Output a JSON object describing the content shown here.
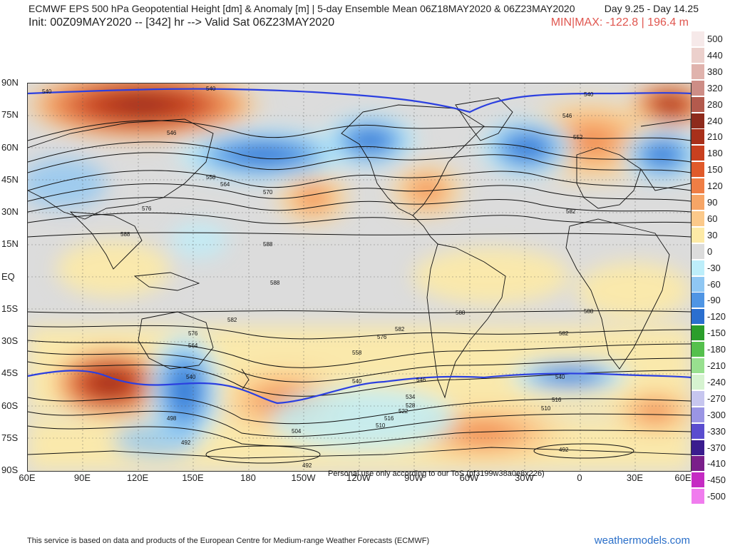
{
  "header": {
    "title": "ECMWF EPS 500 hPa Geopotential Height [dm] & Anomaly [m] | 5-day Ensemble Mean 06Z18MAY2020 & 06Z23MAY2020",
    "days": "Day 9.25 - Day 14.25",
    "init": "Init: 00Z09MAY2020 -- [342] hr --> Valid Sat 06Z23MAY2020",
    "minmax": "MIN|MAX: -122.8 | 196.4 m"
  },
  "axes": {
    "lat_labels": [
      "90N",
      "75N",
      "60N",
      "45N",
      "30N",
      "15N",
      "EQ",
      "15S",
      "30S",
      "45S",
      "60S",
      "75S",
      "90S"
    ],
    "lon_labels": [
      "60E",
      "90E",
      "120E",
      "150E",
      "180",
      "150W",
      "120W",
      "90W",
      "60W",
      "30W",
      "0",
      "30E",
      "60E"
    ]
  },
  "colorbar": {
    "levels": [
      {
        "label": "500",
        "color": "#f6e9e9"
      },
      {
        "label": "440",
        "color": "#ecd0cc"
      },
      {
        "label": "380",
        "color": "#e0b3ad"
      },
      {
        "label": "320",
        "color": "#cd8d86"
      },
      {
        "label": "280",
        "color": "#b35a4d"
      },
      {
        "label": "240",
        "color": "#8e2b1c"
      },
      {
        "label": "210",
        "color": "#a8301a"
      },
      {
        "label": "180",
        "color": "#c8401f"
      },
      {
        "label": "150",
        "color": "#e05a2a"
      },
      {
        "label": "120",
        "color": "#ef7e45"
      },
      {
        "label": "90",
        "color": "#f6a566"
      },
      {
        "label": "60",
        "color": "#fbc98a"
      },
      {
        "label": "30",
        "color": "#fdeaa6"
      },
      {
        "label": "0",
        "color": "#dcdcdc"
      },
      {
        "label": "-30",
        "color": "#bdeefa"
      },
      {
        "label": "-60",
        "color": "#8fc7f3"
      },
      {
        "label": "-90",
        "color": "#4f95e4"
      },
      {
        "label": "-120",
        "color": "#2b6fcf"
      },
      {
        "label": "-150",
        "color": "#2b9e2b"
      },
      {
        "label": "-180",
        "color": "#55c04d"
      },
      {
        "label": "-210",
        "color": "#98e08f"
      },
      {
        "label": "-240",
        "color": "#d6f3d0"
      },
      {
        "label": "-270",
        "color": "#c7c6ef"
      },
      {
        "label": "-300",
        "color": "#9a95e4"
      },
      {
        "label": "-330",
        "color": "#5a4dcf"
      },
      {
        "label": "-370",
        "color": "#3a1c8e"
      },
      {
        "label": "-410",
        "color": "#7a1f8a"
      },
      {
        "label": "-450",
        "color": "#c52bc3"
      },
      {
        "label": "-500",
        "color": "#f07cee"
      }
    ]
  },
  "contour_labels": [
    "540",
    "546",
    "552",
    "558",
    "564",
    "570",
    "576",
    "582",
    "588",
    "534",
    "528",
    "522",
    "516",
    "510",
    "504",
    "498",
    "492"
  ],
  "watermark": "Personal use only according to our ToS (pf3199w38a0e8x226)",
  "footer": "This service is based on data and products of the European Centre for Medium-range Weather Forecasts (ECMWF)",
  "brand": "weathermodels.com",
  "colors": {
    "map_background": "#dcdcdc",
    "highlight_contour": "#2b3fe0",
    "contour": "#111111",
    "minmax_text": "#e0564f",
    "brand": "#2a6fc9"
  }
}
